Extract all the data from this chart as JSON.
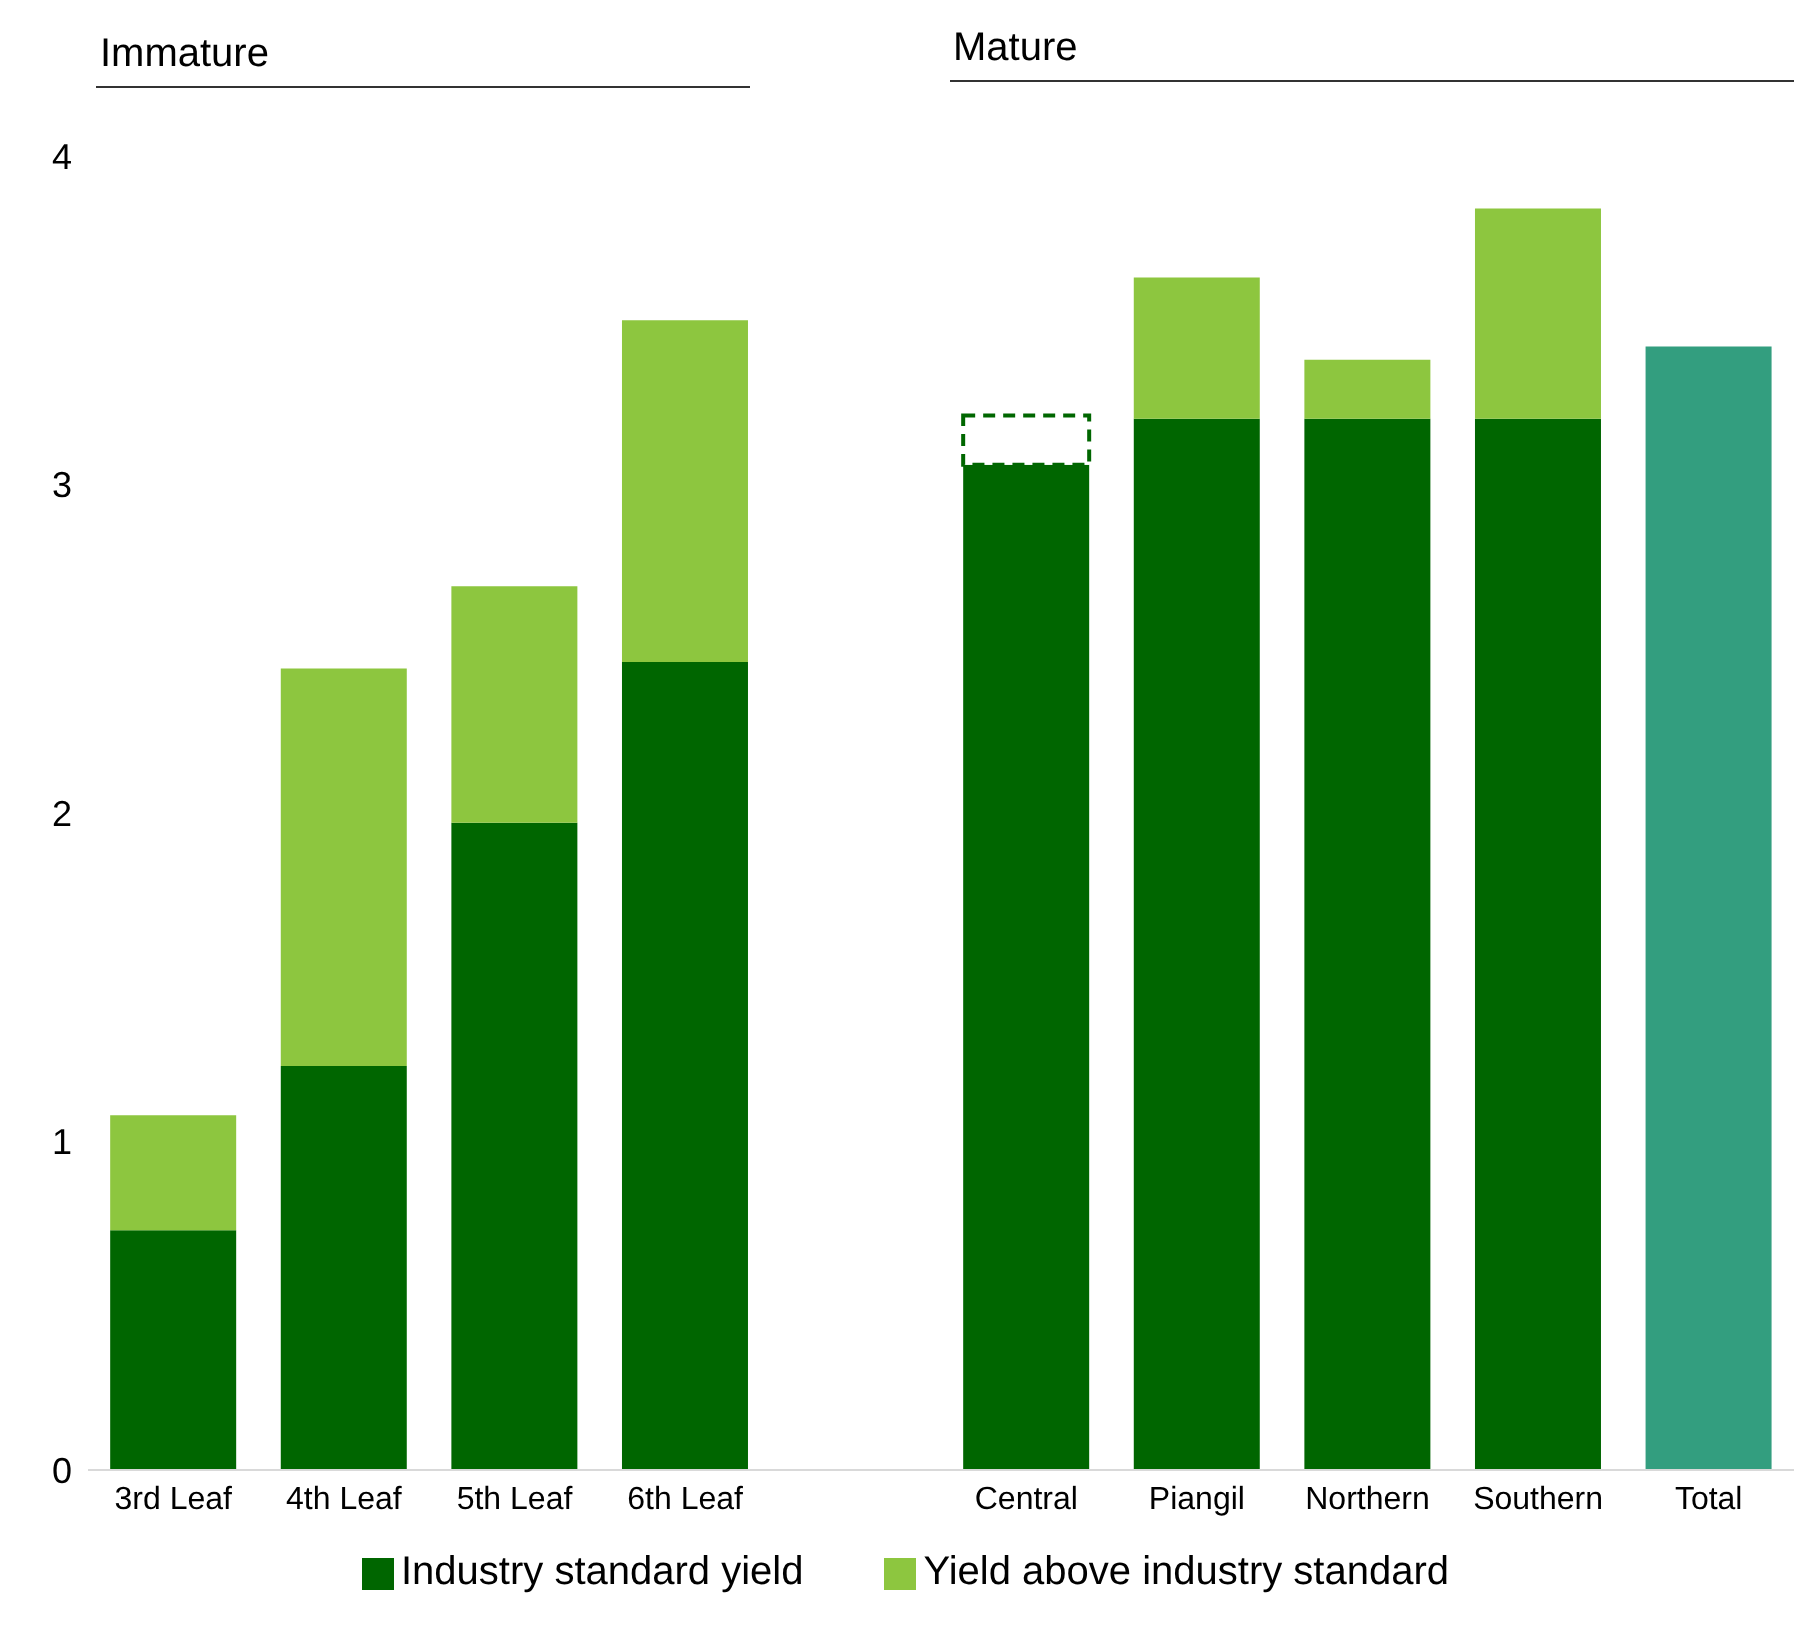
{
  "chart_data": {
    "type": "bar",
    "stacked": true,
    "annotations": [
      "Immature",
      "Mature"
    ],
    "categories": [
      "3rd Leaf",
      "4th Leaf",
      "5th Leaf",
      "6th Leaf",
      null,
      "Central",
      "Piangil",
      "Northern",
      "Southern",
      "Total"
    ],
    "series": [
      {
        "name": "Industry standard yield",
        "color": "#006600",
        "values": [
          0.73,
          1.23,
          1.97,
          2.46,
          null,
          3.06,
          3.2,
          3.2,
          3.2,
          null
        ]
      },
      {
        "color": "#006600",
        "line_style": "dashed",
        "values": [
          null,
          null,
          null,
          null,
          null,
          0.15,
          null,
          null,
          null,
          null
        ]
      },
      {
        "name": "Yield above industry standard",
        "color": "#8dc63f",
        "values": [
          0.35,
          1.21,
          0.72,
          1.04,
          null,
          null,
          0.43,
          0.18,
          0.64,
          null
        ]
      },
      {
        "color": "#339e7f",
        "values": [
          null,
          null,
          null,
          null,
          null,
          null,
          null,
          null,
          null,
          3.42
        ]
      }
    ],
    "ylim": [
      0,
      4
    ],
    "yticks": [
      0,
      1,
      2,
      3,
      4
    ],
    "grid": false,
    "legend": "bottom"
  }
}
